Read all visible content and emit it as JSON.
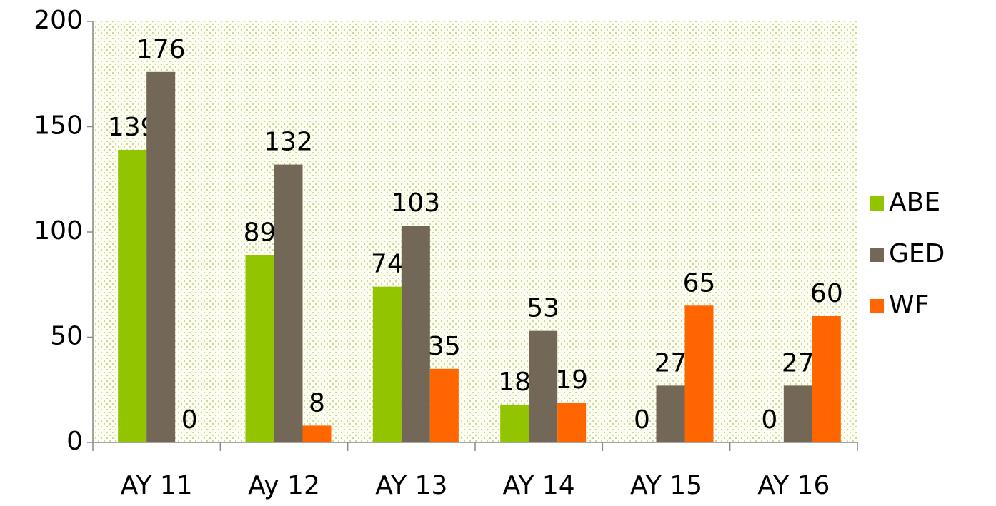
{
  "chart_data": {
    "type": "bar",
    "categories": [
      "AY 11",
      "Ay 12",
      "AY 13",
      "AY 14",
      "AY 15",
      "AY 16"
    ],
    "series": [
      {
        "name": "ABE",
        "color": "#92c400",
        "values": [
          139,
          89,
          74,
          18,
          0,
          0
        ]
      },
      {
        "name": "GED",
        "color": "#736857",
        "values": [
          176,
          132,
          103,
          53,
          27,
          27
        ]
      },
      {
        "name": "WF",
        "color": "#ff6600",
        "values": [
          0,
          8,
          35,
          19,
          65,
          60
        ]
      }
    ],
    "ylim": [
      0,
      200
    ],
    "yticks": [
      0,
      50,
      100,
      150,
      200
    ],
    "legend": "right"
  }
}
